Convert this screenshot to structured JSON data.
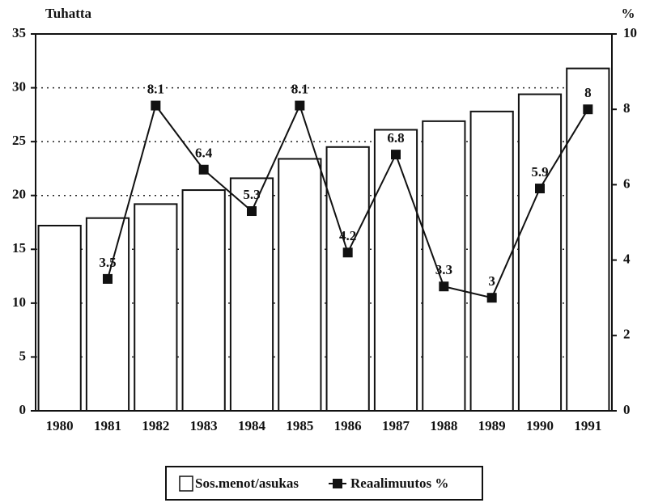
{
  "chart_data": {
    "type": "bar",
    "y_label": "Tuhatta",
    "y2_label": "%",
    "categories": [
      "1980",
      "1981",
      "1982",
      "1983",
      "1984",
      "1985",
      "1986",
      "1987",
      "1988",
      "1989",
      "1990",
      "1991"
    ],
    "series": [
      {
        "name": "Sos.menot/asukas",
        "type": "bar",
        "color": "#ffffff",
        "values": [
          17.2,
          17.9,
          19.2,
          20.5,
          21.6,
          23.4,
          24.5,
          26.1,
          26.9,
          27.8,
          29.4,
          31.8
        ]
      },
      {
        "name": "Reaalimuutos %",
        "type": "line",
        "axis": "y2",
        "color": "#111111",
        "values": [
          null,
          3.5,
          8.1,
          6.4,
          5.3,
          8.1,
          4.2,
          6.8,
          3.3,
          3,
          5.9,
          8
        ]
      }
    ],
    "ylim": [
      0,
      35
    ],
    "yticks": [
      0,
      5,
      10,
      15,
      20,
      25,
      30,
      35
    ],
    "y2lim": [
      0,
      10
    ],
    "y2ticks": [
      0,
      2,
      4,
      6,
      8,
      10
    ],
    "grid": true,
    "legend": "bottom"
  }
}
